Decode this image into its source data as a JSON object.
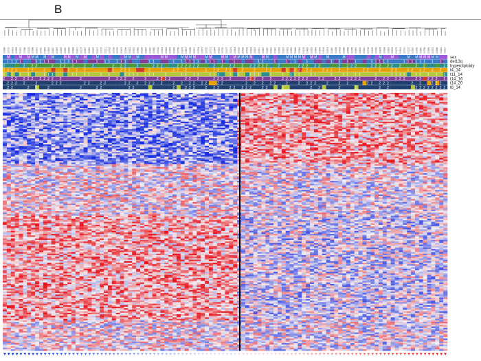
{
  "panel_label": "B",
  "annotation_tracks": [
    {
      "label": "sex",
      "glyph": "M/F"
    },
    {
      "label": "del13q",
      "glyph": "1"
    },
    {
      "label": "hyperdiploidy",
      "glyph": "2"
    },
    {
      "label": "t4_14",
      "glyph": "2"
    },
    {
      "label": "t11_14",
      "glyph": "1"
    },
    {
      "label": "t14_16",
      "glyph": "2"
    },
    {
      "label": "t14_20",
      "glyph": "2"
    },
    {
      "label": "t6_14",
      "glyph": "2"
    }
  ],
  "colors": {
    "high": "#e8121a",
    "mid": "#f2eef2",
    "low": "#1a2fe0",
    "divider": "#000000",
    "track_palette": [
      "#7f3f98",
      "#3b78c7",
      "#4a9a3c",
      "#e8a000",
      "#d43a2a",
      "#2a8f8a",
      "#b2c73a",
      "#9a5ad8",
      "#1f3f6f",
      "#c55aa0"
    ]
  },
  "heatmap": {
    "n_columns": 110,
    "n_rows": 170,
    "split_column": 58
  },
  "bottom_markers": {
    "left_color": "#2244d8",
    "right_color": "#e83030"
  }
}
